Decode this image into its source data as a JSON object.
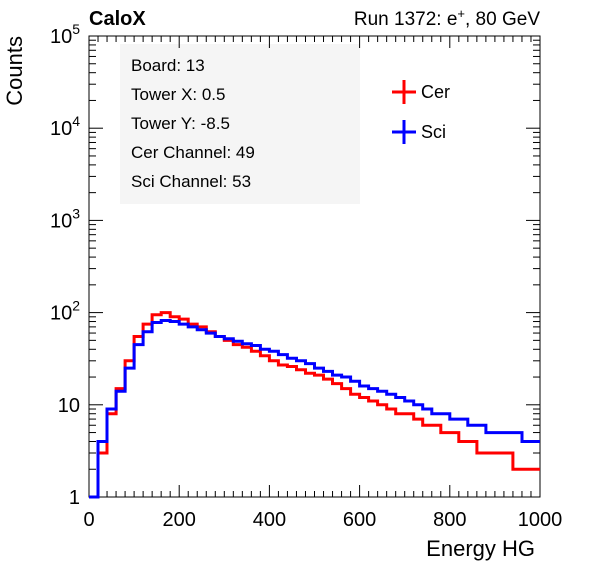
{
  "header": {
    "experiment": "CaloX",
    "run_prefix": "Run 1372: e",
    "run_sup": "+",
    "run_suffix": ", 80 GeV"
  },
  "info_box": {
    "lines": [
      "Board: 13",
      "Tower X: 0.5",
      "Tower Y: -8.5",
      "Cer Channel: 49",
      "Sci Channel: 53"
    ],
    "background": "#f5f5f5"
  },
  "chart_data": {
    "type": "line",
    "title": "",
    "xlabel": "Energy HG",
    "ylabel": "Counts",
    "xlim": [
      0,
      1000
    ],
    "ylim": [
      1,
      100000
    ],
    "yscale": "log",
    "x_ticks": [
      "0",
      "200",
      "400",
      "600",
      "800",
      "1000"
    ],
    "y_ticks": [
      {
        "base": "1",
        "exp": ""
      },
      {
        "base": "10",
        "exp": ""
      },
      {
        "base": "10",
        "exp": "2"
      },
      {
        "base": "10",
        "exp": "3"
      },
      {
        "base": "10",
        "exp": "4"
      },
      {
        "base": "10",
        "exp": "5"
      }
    ],
    "legend_position": "top-right",
    "x": [
      0,
      20,
      40,
      60,
      80,
      100,
      120,
      140,
      160,
      180,
      200,
      220,
      240,
      260,
      280,
      300,
      320,
      340,
      360,
      380,
      400,
      420,
      440,
      460,
      480,
      500,
      520,
      540,
      560,
      580,
      600,
      620,
      640,
      660,
      680,
      700,
      720,
      740,
      760,
      780,
      800,
      820,
      840,
      860,
      880,
      900,
      920,
      940,
      960,
      980,
      1000
    ],
    "series": [
      {
        "name": "Cer",
        "color": "#ff0000",
        "values": [
          1,
          3,
          8,
          15,
          30,
          55,
          75,
          95,
          100,
          90,
          85,
          75,
          70,
          62,
          55,
          50,
          45,
          42,
          38,
          34,
          30,
          27,
          26,
          24,
          22,
          21,
          19,
          17,
          15,
          13,
          12,
          11,
          10,
          9,
          8,
          8,
          7,
          6,
          6,
          5,
          5,
          4,
          4,
          3,
          3,
          3,
          3,
          2,
          2,
          2,
          2
        ]
      },
      {
        "name": "Sci",
        "color": "#0000ff",
        "values": [
          1,
          4,
          9,
          14,
          25,
          45,
          62,
          78,
          82,
          80,
          75,
          70,
          65,
          60,
          55,
          52,
          49,
          46,
          44,
          40,
          38,
          35,
          32,
          30,
          28,
          25,
          23,
          21,
          20,
          18,
          16,
          15,
          14,
          13,
          12,
          11,
          10,
          9,
          8,
          8,
          7,
          7,
          6,
          6,
          5,
          5,
          5,
          5,
          4,
          4,
          4
        ]
      }
    ]
  }
}
